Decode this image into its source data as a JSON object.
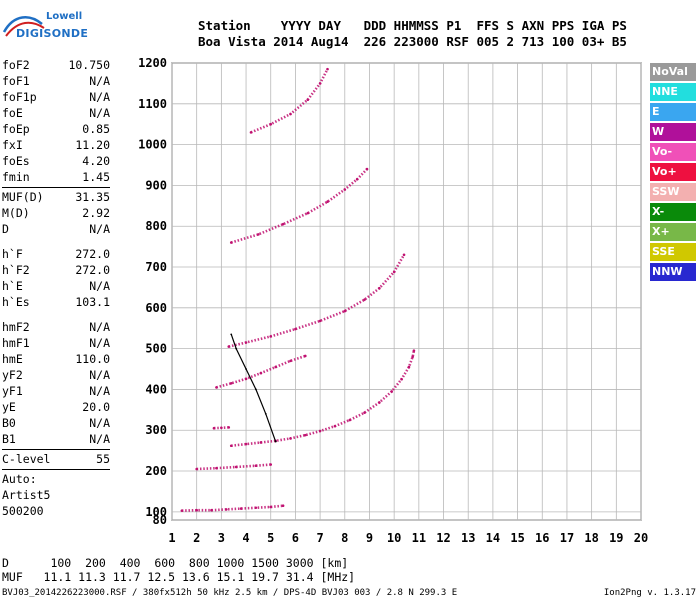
{
  "brand": {
    "line1": "Lowell",
    "line2": "DIGISONDE"
  },
  "header": {
    "line1": "Station    YYYY DAY   DDD HHMMSS P1  FFS S AXN PPS IGA PS",
    "line2": "Boa Vista 2014 Aug14  226 223000 RSF 005 2 713 100 03+ B5"
  },
  "params": {
    "group1": [
      {
        "name": "foF2",
        "value": "10.750"
      },
      {
        "name": "foF1",
        "value": "N/A"
      },
      {
        "name": "foF1p",
        "value": "N/A"
      },
      {
        "name": "foE",
        "value": "N/A"
      },
      {
        "name": "foEp",
        "value": "0.85"
      },
      {
        "name": "fxI",
        "value": "11.20"
      },
      {
        "name": "foEs",
        "value": "4.20"
      },
      {
        "name": "fmin",
        "value": "1.45"
      }
    ],
    "group2": [
      {
        "name": "MUF(D)",
        "value": "31.35"
      },
      {
        "name": "M(D)",
        "value": "2.92"
      },
      {
        "name": "D",
        "value": "N/A"
      }
    ],
    "group3": [
      {
        "name": "h`F",
        "value": "272.0"
      },
      {
        "name": "h`F2",
        "value": "272.0"
      },
      {
        "name": "h`E",
        "value": "N/A"
      },
      {
        "name": "h`Es",
        "value": "103.1"
      }
    ],
    "group4": [
      {
        "name": "hmF2",
        "value": "N/A"
      },
      {
        "name": "hmF1",
        "value": "N/A"
      },
      {
        "name": "hmE",
        "value": "110.0"
      },
      {
        "name": "yF2",
        "value": "N/A"
      },
      {
        "name": "yF1",
        "value": "N/A"
      },
      {
        "name": "yE",
        "value": "20.0"
      },
      {
        "name": "B0",
        "value": "N/A"
      },
      {
        "name": "B1",
        "value": "N/A"
      }
    ],
    "group5": [
      {
        "name": "C-level",
        "value": "55"
      }
    ],
    "auto": [
      "Auto:",
      "Artist5",
      "500200"
    ]
  },
  "legend": [
    {
      "label": "NoVal",
      "color": "#9a9a9a"
    },
    {
      "label": "NNE",
      "color": "#22dede"
    },
    {
      "label": "E",
      "color": "#3aa6f0"
    },
    {
      "label": "W",
      "color": "#b0109a"
    },
    {
      "label": "Vo-",
      "color": "#f050b8"
    },
    {
      "label": "Vo+",
      "color": "#ee1040"
    },
    {
      "label": "SSW",
      "color": "#f3b0b0"
    },
    {
      "label": "X-",
      "color": "#0a8a0a"
    },
    {
      "label": "X+",
      "color": "#78b848"
    },
    {
      "label": "SSE",
      "color": "#d0c800"
    },
    {
      "label": "NNW",
      "color": "#2828d0"
    }
  ],
  "bottom": {
    "line1": "D      100  200  400  600  800 1000 1500 3000 [km]",
    "line2": "MUF   11.1 11.3 11.7 12.5 13.6 15.1 19.7 31.4 [MHz]"
  },
  "footer": {
    "left": "BVJ03_2014226223000.RSF / 380fx512h 50 kHz 2.5 km / DPS-4D BVJ03 003 / 2.8 N 299.3 E",
    "right": "Ion2Png v. 1.3.17"
  },
  "chart_data": {
    "type": "scatter",
    "title": "",
    "xlabel": "",
    "ylabel": "",
    "xlim": [
      1,
      20
    ],
    "ylim": [
      80,
      1200
    ],
    "x_ticks": [
      1,
      2,
      3,
      4,
      5,
      6,
      7,
      8,
      9,
      10,
      11,
      12,
      13,
      14,
      15,
      16,
      17,
      18,
      19,
      20
    ],
    "y_ticks": [
      80,
      100,
      200,
      300,
      400,
      500,
      600,
      700,
      800,
      900,
      1000,
      1100,
      1200
    ],
    "grid": true,
    "traces": [
      {
        "name": "1-hop F2 trace",
        "color": "#c01070",
        "x": [
          3.4,
          4.0,
          4.6,
          5.2,
          5.8,
          6.4,
          7.0,
          7.6,
          8.2,
          8.8,
          9.4,
          9.9,
          10.3,
          10.6,
          10.75,
          10.8
        ],
        "y": [
          262,
          266,
          270,
          274,
          280,
          288,
          298,
          310,
          325,
          343,
          368,
          395,
          425,
          455,
          480,
          495
        ]
      },
      {
        "name": "2-hop F2 trace",
        "color": "#c01070",
        "x": [
          3.3,
          4.0,
          5.0,
          6.0,
          7.0,
          8.0,
          8.8,
          9.4,
          10.0,
          10.4
        ],
        "y": [
          505,
          515,
          530,
          548,
          568,
          592,
          620,
          648,
          688,
          730
        ]
      },
      {
        "name": "3-hop F2 trace",
        "color": "#c01070",
        "x": [
          3.4,
          4.5,
          5.5,
          6.5,
          7.3,
          8.0,
          8.5,
          8.9
        ],
        "y": [
          760,
          780,
          805,
          832,
          860,
          890,
          915,
          940
        ]
      },
      {
        "name": "4-hop F2 trace",
        "color": "#c01070",
        "x": [
          4.2,
          5.0,
          5.8,
          6.5,
          7.0,
          7.3
        ],
        "y": [
          1030,
          1050,
          1075,
          1110,
          1150,
          1185
        ]
      },
      {
        "name": "Low trace 400 km",
        "color": "#c01070",
        "x": [
          2.8,
          3.4,
          4.0,
          4.6,
          5.2,
          5.8,
          6.4
        ],
        "y": [
          405,
          415,
          426,
          440,
          455,
          470,
          482
        ]
      },
      {
        "name": "Low trace 300 km",
        "color": "#c01070",
        "x": [
          2.7,
          3.0,
          3.3
        ],
        "y": [
          305,
          306,
          307
        ]
      },
      {
        "name": "Es trace",
        "color": "#c01070",
        "x": [
          1.4,
          2.0,
          2.6,
          3.2,
          3.8,
          4.4,
          5.0,
          5.5
        ],
        "y": [
          103,
          104,
          104,
          106,
          108,
          110,
          112,
          115
        ]
      },
      {
        "name": "Es 2-hop",
        "color": "#c01070",
        "x": [
          2.0,
          2.8,
          3.6,
          4.4,
          5.0
        ],
        "y": [
          205,
          207,
          210,
          213,
          216
        ]
      },
      {
        "name": "Profile curve",
        "color": "#000000",
        "x": [
          3.4,
          3.6,
          4.0,
          4.4,
          4.8,
          5.2
        ],
        "y": [
          535,
          500,
          450,
          400,
          340,
          272
        ]
      }
    ]
  }
}
